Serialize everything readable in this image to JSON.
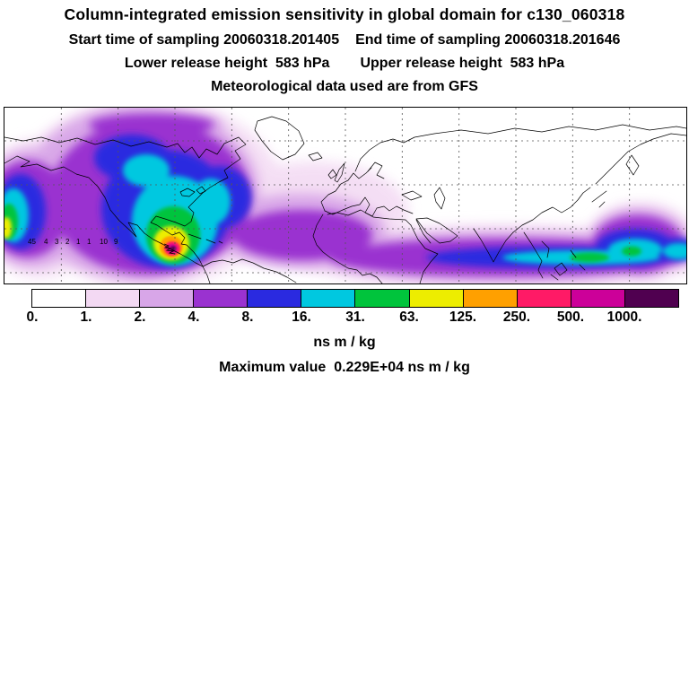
{
  "header": {
    "title": "Column-integrated emission sensitivity in global domain for c130_060318",
    "start_time": "Start time of sampling 20060318.201405",
    "end_time": "End time of sampling 20060318.201646",
    "lower_release": "Lower release height  583 hPa",
    "upper_release": "Upper release height  583 hPa",
    "met_data": "Meteorological data used are from GFS"
  },
  "colorbar": {
    "units": "ns m / kg",
    "cells": [
      {
        "label": "0.",
        "color": "#ffffff"
      },
      {
        "label": "1.",
        "color": "#f3d9f3"
      },
      {
        "label": "2.",
        "color": "#d8a6e8"
      },
      {
        "label": "4.",
        "color": "#9a32d0"
      },
      {
        "label": "8.",
        "color": "#2a2ae0"
      },
      {
        "label": "16.",
        "color": "#00c8e0"
      },
      {
        "label": "31.",
        "color": "#00c43c"
      },
      {
        "label": "63.",
        "color": "#eded00"
      },
      {
        "label": "125.",
        "color": "#ffa000"
      },
      {
        "label": "250.",
        "color": "#ff1a66"
      },
      {
        "label": "500.",
        "color": "#cc0099"
      },
      {
        "label": "1000.",
        "color": "#500050"
      }
    ]
  },
  "footer": {
    "max_value_line": "Maximum value  0.229E+04 ns m / kg"
  },
  "map": {
    "flight_track_labels": [
      "45",
      "4",
      "3",
      "2",
      "1",
      "1",
      "10",
      "9"
    ]
  },
  "chart_data": {
    "type": "heatmap",
    "title": "Column-integrated emission sensitivity in global domain for c130_060318",
    "subtitle": [
      "Start time of sampling 20060318.201405",
      "End time of sampling 20060318.201646",
      "Lower release height 583 hPa",
      "Upper release height 583 hPa",
      "Meteorological data used are from GFS"
    ],
    "units": "ns m / kg",
    "max_value": "0.229E+04",
    "levels": [
      0,
      1,
      2,
      4,
      8,
      16,
      31,
      63,
      125,
      250,
      500,
      1000
    ],
    "level_colors": [
      "#ffffff",
      "#f3d9f3",
      "#d8a6e8",
      "#9a32d0",
      "#2a2ae0",
      "#00c8e0",
      "#00c43c",
      "#eded00",
      "#ffa000",
      "#ff1a66",
      "#cc0099",
      "#500050"
    ],
    "domain": "global lat-lon map with dashed graticule and coastlines",
    "legend_position": "bottom",
    "notes": "Plume maximum (red/magenta core) over southern Mexico / Central America, surrounded by concentric yellow-green-cyan-blue-violet bands over North America and the North Pacific; secondary violet/blue/cyan sensitivity band stretching across the Atlantic, North Africa and southern Asia to the eastern map edge; numbered flight-track waypoints west of the maximum."
  }
}
